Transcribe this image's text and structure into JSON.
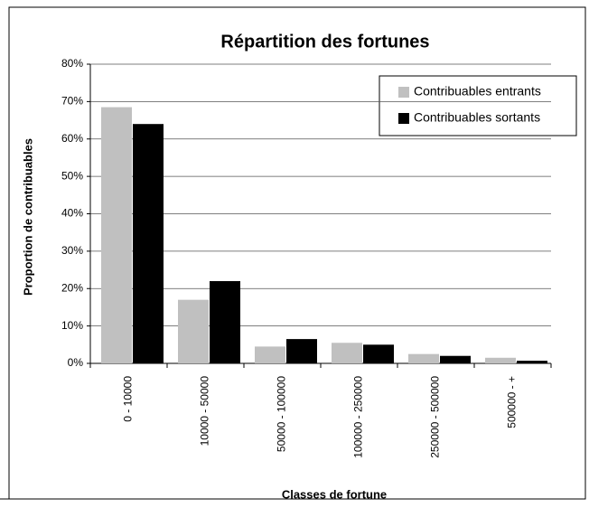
{
  "chart_data": {
    "type": "bar",
    "title": "Répartition des fortunes",
    "x_label": "Classes de fortune",
    "y_label": "Proportion de contribuables",
    "categories": [
      "0 - 10000",
      "10000 - 50000",
      "50000 - 100000",
      "100000 - 250000",
      "250000 - 500000",
      "500000 - +"
    ],
    "series": [
      {
        "name": "Contribuables entrants",
        "color": "#c0c0c0",
        "values": [
          68.5,
          17,
          4.5,
          5.5,
          2.5,
          1.5
        ]
      },
      {
        "name": "Contribuables sortants",
        "color": "#000000",
        "values": [
          64,
          22,
          6.5,
          5,
          2,
          0.7
        ]
      }
    ],
    "ylim": [
      0,
      80
    ],
    "yticks": [
      {
        "value": 0,
        "label": "0%"
      },
      {
        "value": 10,
        "label": "10%"
      },
      {
        "value": 20,
        "label": "20%"
      },
      {
        "value": 30,
        "label": "30%"
      },
      {
        "value": 40,
        "label": "40%"
      },
      {
        "value": 50,
        "label": "50%"
      },
      {
        "value": 60,
        "label": "60%"
      },
      {
        "value": 70,
        "label": "70%"
      },
      {
        "value": 80,
        "label": "80%"
      }
    ],
    "grid": true,
    "legend": "upper right"
  }
}
